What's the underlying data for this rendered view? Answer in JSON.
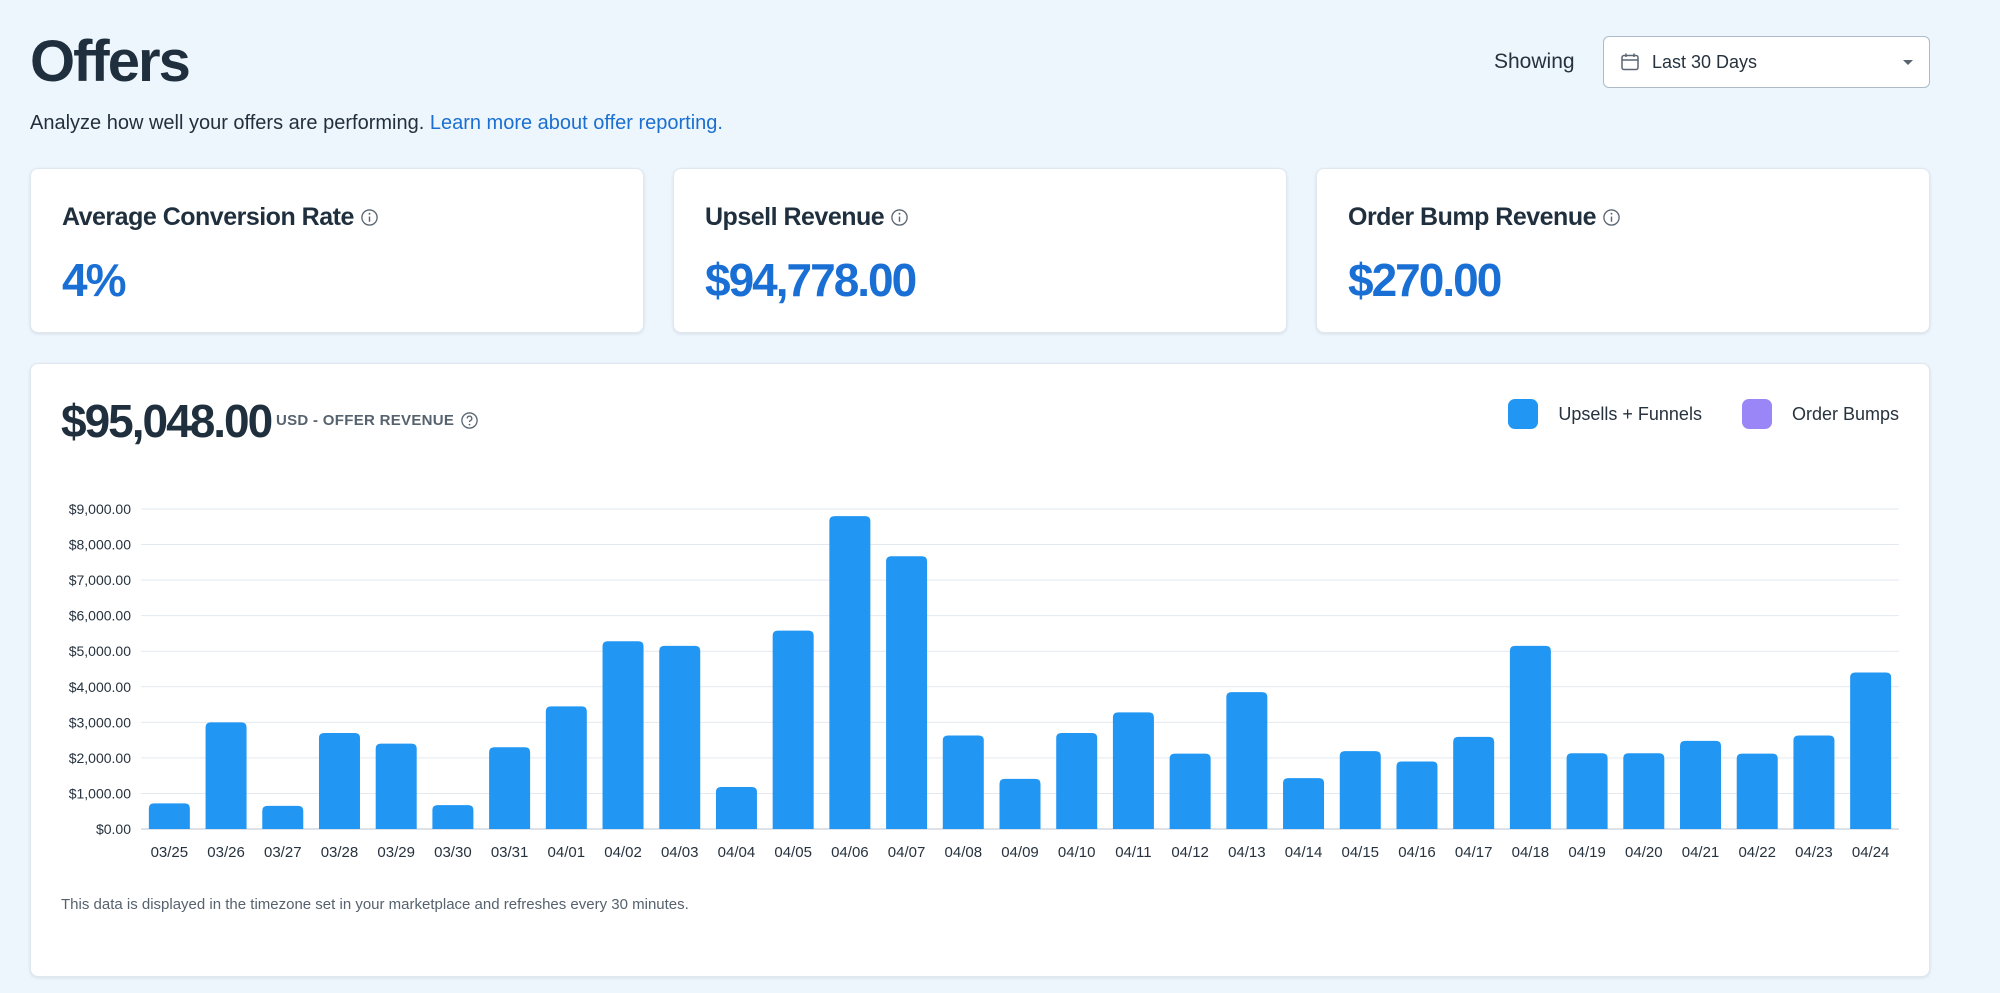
{
  "header": {
    "title": "Offers",
    "subtitle": "Analyze how well your offers are performing.",
    "learn_more": "Learn more about offer reporting.",
    "showing_label": "Showing",
    "date_range": "Last 30 Days"
  },
  "stats": [
    {
      "label": "Average Conversion Rate",
      "value": "4%"
    },
    {
      "label": "Upsell Revenue",
      "value": "$94,778.00"
    },
    {
      "label": "Order Bump Revenue",
      "value": "$270.00"
    }
  ],
  "revenue": {
    "total": "$95,048.00",
    "label": "USD - OFFER REVENUE",
    "footnote": "This data is displayed in the timezone set in your marketplace and refreshes every 30 minutes."
  },
  "colors": {
    "upsells": "#2196f3",
    "order_bumps": "#9a86f7",
    "accent": "#1a6fd4"
  },
  "chart_data": {
    "type": "bar",
    "title": "",
    "xlabel": "",
    "ylabel": "",
    "ylim": [
      0,
      9000
    ],
    "yticks": [
      "$0.00",
      "$1,000.00",
      "$2,000.00",
      "$3,000.00",
      "$4,000.00",
      "$5,000.00",
      "$6,000.00",
      "$7,000.00",
      "$8,000.00",
      "$9,000.00"
    ],
    "categories": [
      "03/25",
      "03/26",
      "03/27",
      "03/28",
      "03/29",
      "03/30",
      "03/31",
      "04/01",
      "04/02",
      "04/03",
      "04/04",
      "04/05",
      "04/06",
      "04/07",
      "04/08",
      "04/09",
      "04/10",
      "04/11",
      "04/12",
      "04/13",
      "04/14",
      "04/15",
      "04/16",
      "04/17",
      "04/18",
      "04/19",
      "04/20",
      "04/21",
      "04/22",
      "04/23",
      "04/24"
    ],
    "series": [
      {
        "name": "Upsells + Funnels",
        "values": [
          720,
          3000,
          650,
          2700,
          2400,
          670,
          2300,
          3450,
          5280,
          5150,
          1180,
          5580,
          8800,
          7670,
          2630,
          1410,
          2700,
          3280,
          2120,
          3850,
          1430,
          2190,
          1900,
          2590,
          5150,
          2130,
          2130,
          2480,
          2120,
          2630,
          4400
        ]
      },
      {
        "name": "Order Bumps",
        "values": [
          0,
          0,
          0,
          0,
          0,
          0,
          0,
          0,
          0,
          0,
          0,
          0,
          0,
          0,
          0,
          0,
          0,
          0,
          0,
          0,
          0,
          0,
          0,
          0,
          0,
          0,
          0,
          0,
          0,
          0,
          0
        ]
      }
    ],
    "legend_position": "top-right"
  }
}
